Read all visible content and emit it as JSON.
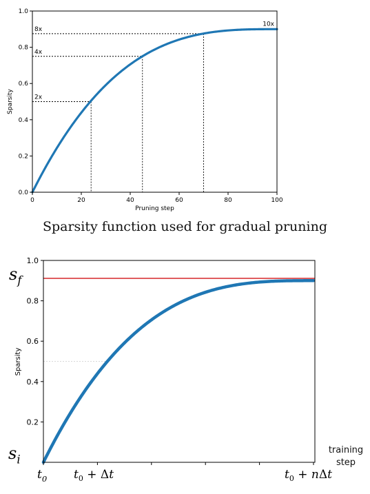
{
  "caption": "Sparsity function used for gradual pruning",
  "chart_data": [
    {
      "type": "line",
      "xlabel": "Pruning step",
      "ylabel": "Sparsity",
      "xlim": [
        0,
        100
      ],
      "ylim": [
        0,
        1.0
      ],
      "x_ticks": [
        "0",
        "20",
        "40",
        "60",
        "80",
        "100"
      ],
      "y_ticks": [
        "0.0",
        "0.2",
        "0.4",
        "0.6",
        "0.8",
        "1.0"
      ],
      "final_sparsity": 0.9,
      "pruning_steps": 100,
      "line_color": "#1f77b4",
      "guide_color": "#000000",
      "grid": false,
      "markers": [
        {
          "label": "2x",
          "x": 24,
          "y": 0.5
        },
        {
          "label": "4x",
          "x": 45,
          "y": 0.75
        },
        {
          "label": "8x",
          "x": 70,
          "y": 0.875
        }
      ],
      "end_label": "10x"
    },
    {
      "type": "line",
      "ylabel": "Sparsity",
      "ylim": [
        0,
        1.0
      ],
      "y_ticks": [
        "0.2",
        "0.4",
        "0.6",
        "0.8",
        "1.0"
      ],
      "final_sparsity": 0.9,
      "pruning_steps": 100,
      "line_color": "#1f77b4",
      "target_line_color": "#d62728",
      "grid": false,
      "math_labels": {
        "s_f": "s_f",
        "s_i": "s_i",
        "t0": "t_0",
        "t0_dt": "t_0 + Δt",
        "t0_ndt": "t_0 + nΔt"
      },
      "side_label": "training step"
    }
  ]
}
